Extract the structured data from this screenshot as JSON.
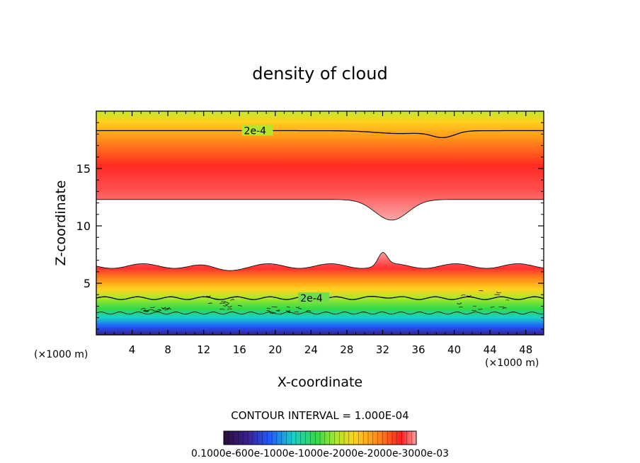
{
  "chart_data": {
    "type": "heatmap",
    "title": "density of cloud",
    "xlabel": "X-coordinate",
    "ylabel": "Z-coordinate",
    "x_unit": "(×1000 m)",
    "x_unit_right": "(×1000 m)",
    "xlim": [
      0,
      50
    ],
    "ylim": [
      0.5,
      20
    ],
    "x_ticks": [
      4,
      8,
      12,
      16,
      20,
      24,
      28,
      32,
      36,
      40,
      44,
      48
    ],
    "y_ticks": [
      5,
      10,
      15
    ],
    "contour_interval_text": "CONTOUR INTERVAL = 1.000E-04",
    "contour_labels": [
      {
        "text": "2e-4",
        "x": 16.5,
        "z": 18.3
      },
      {
        "text": "2e-4",
        "x": 22.8,
        "z": 3.7
      }
    ],
    "colorbar_labels": "0.1000e-600e-1000e-1000e-2000e-2000e-3000e-03",
    "colorbar_range": [
      0.0,
      0.0003
    ],
    "layers": {
      "upper": {
        "top_z": 18.3,
        "peak_z": 14.5,
        "base_z": 12.3,
        "peak_value": 0.0003
      },
      "lower": {
        "top_z": 6.5,
        "peak_z": 5.0,
        "contour_z": 3.7,
        "base_z": 1.3,
        "peak_value": 0.0003
      },
      "dip": {
        "x_center": 33,
        "base_z_min": 10.5,
        "top_dip_x": 38.8,
        "top_dip_z": 17.8
      }
    },
    "colors": {
      "low": "#3a1f8f",
      "blue": "#1f5cff",
      "cyan": "#19d0c8",
      "green": "#32d94a",
      "lime": "#a8e82a",
      "yellow": "#ffd21f",
      "orange": "#ff8a1a",
      "red": "#ff1f1f",
      "pink": "#f8a0a0"
    }
  }
}
